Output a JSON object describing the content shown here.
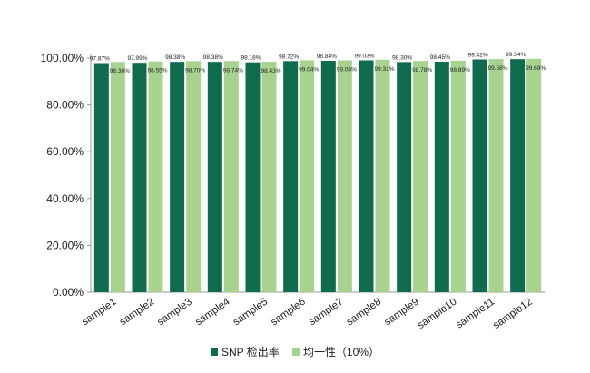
{
  "chart_data": {
    "type": "bar",
    "categories": [
      "sample1",
      "sample2",
      "sample3",
      "sample4",
      "sample5",
      "sample6",
      "sample7",
      "sample8",
      "sample9",
      "sample10",
      "sample11",
      "sample12"
    ],
    "series": [
      {
        "name": "SNP 检出率",
        "color": "#0e6b4e",
        "values": [
          97.87,
          97.99,
          98.38,
          98.38,
          98.18,
          98.72,
          98.84,
          99.03,
          98.3,
          98.45,
          99.42,
          99.54
        ],
        "labels": [
          "97.87%",
          "97.99%",
          "98.38%",
          "98.38%",
          "98.18%",
          "98.72%",
          "98.84%",
          "99.03%",
          "98.30%",
          "98.45%",
          "99.42%",
          "99.54%"
        ]
      },
      {
        "name": "均一性（10%）",
        "color": "#a8d38e",
        "values": [
          98.36,
          98.55,
          98.7,
          98.74,
          98.43,
          99.04,
          99.04,
          99.31,
          98.78,
          98.89,
          99.58,
          99.69
        ],
        "labels": [
          "98.36%",
          "98.55%",
          "98.70%",
          "98.74%",
          "98.43%",
          "99.04%",
          "99.04%",
          "99.31%",
          "98.78%",
          "98.89%",
          "99.58%",
          "99.69%"
        ]
      }
    ],
    "yticks": [
      "0.00%",
      "20.00%",
      "40.00%",
      "60.00%",
      "80.00%",
      "100.00%"
    ],
    "ylim": [
      0,
      100
    ],
    "grid": false,
    "legend": "bottom"
  }
}
